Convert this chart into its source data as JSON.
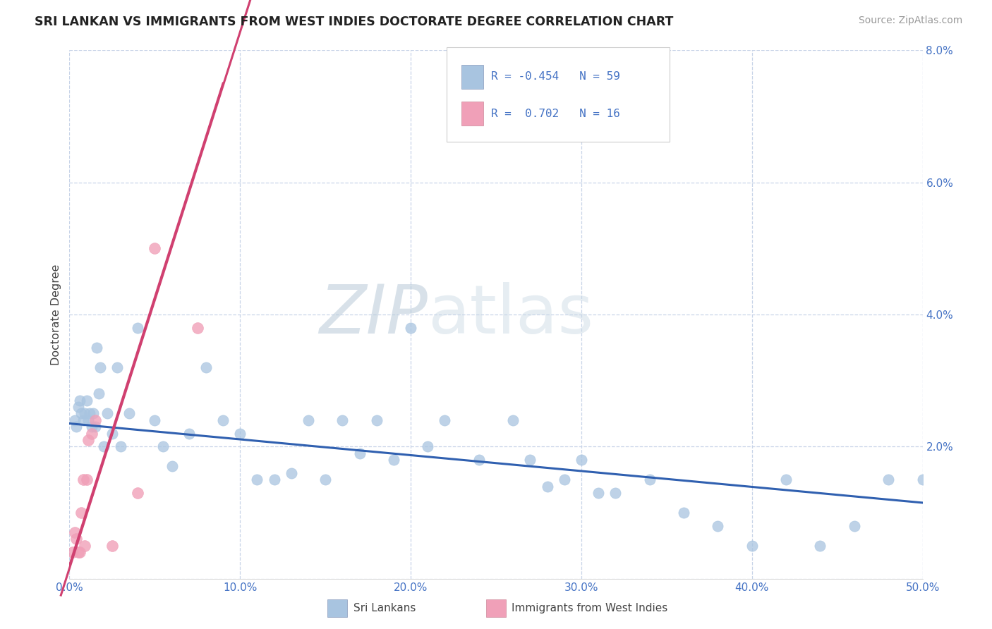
{
  "title": "SRI LANKAN VS IMMIGRANTS FROM WEST INDIES DOCTORATE DEGREE CORRELATION CHART",
  "source": "Source: ZipAtlas.com",
  "xlim": [
    0.0,
    50.0
  ],
  "ylim": [
    0.0,
    8.0
  ],
  "watermark": "ZIPatlas",
  "sri_lankan_color": "#a8c4e0",
  "west_indies_color": "#f0a0b8",
  "trend_blue_color": "#3060b0",
  "trend_pink_color": "#d04070",
  "title_color": "#222222",
  "legend_text_color": "#4472c4",
  "grid_color": "#c8d4e8",
  "watermark_color": "#d0dce8",
  "ylabel_color": "#4472c4",
  "xtick_color": "#4472c4",
  "sl_x": [
    0.3,
    0.4,
    0.5,
    0.6,
    0.7,
    0.8,
    0.9,
    1.0,
    1.1,
    1.2,
    1.3,
    1.4,
    1.5,
    1.6,
    1.7,
    1.8,
    2.0,
    2.2,
    2.5,
    2.8,
    3.0,
    3.5,
    4.0,
    5.0,
    5.5,
    6.0,
    7.0,
    8.0,
    9.0,
    10.0,
    11.0,
    12.0,
    13.0,
    14.0,
    15.0,
    16.0,
    17.0,
    18.0,
    19.0,
    20.0,
    21.0,
    22.0,
    24.0,
    26.0,
    27.0,
    28.0,
    29.0,
    30.0,
    31.0,
    32.0,
    34.0,
    36.0,
    38.0,
    40.0,
    42.0,
    44.0,
    46.0,
    48.0,
    50.0
  ],
  "sl_y": [
    2.4,
    2.3,
    2.6,
    2.7,
    2.5,
    2.4,
    2.5,
    2.7,
    2.4,
    2.5,
    2.3,
    2.5,
    2.3,
    3.5,
    2.8,
    3.2,
    2.0,
    2.5,
    2.2,
    3.2,
    2.0,
    2.5,
    3.8,
    2.4,
    2.0,
    1.7,
    2.2,
    3.2,
    2.4,
    2.2,
    1.5,
    1.5,
    1.6,
    2.4,
    1.5,
    2.4,
    1.9,
    2.4,
    1.8,
    3.8,
    2.0,
    2.4,
    1.8,
    2.4,
    1.8,
    1.4,
    1.5,
    1.8,
    1.3,
    1.3,
    1.5,
    1.0,
    0.8,
    0.5,
    1.5,
    0.5,
    0.8,
    1.5,
    1.5
  ],
  "wi_x": [
    0.2,
    0.3,
    0.4,
    0.5,
    0.6,
    0.7,
    0.8,
    0.9,
    1.0,
    1.1,
    1.3,
    1.5,
    2.5,
    4.0,
    5.0,
    7.5
  ],
  "wi_y": [
    0.4,
    0.7,
    0.6,
    0.4,
    0.4,
    1.0,
    1.5,
    0.5,
    1.5,
    2.1,
    2.2,
    2.4,
    0.5,
    1.3,
    5.0,
    3.8
  ],
  "sl_trend_x0": 0.0,
  "sl_trend_x1": 50.0,
  "sl_trend_y0": 2.35,
  "sl_trend_y1": 1.15,
  "wi_trend_x0": 0.0,
  "wi_trend_x1": 9.0,
  "wi_trend_y0": 0.2,
  "wi_trend_y1": 7.5
}
